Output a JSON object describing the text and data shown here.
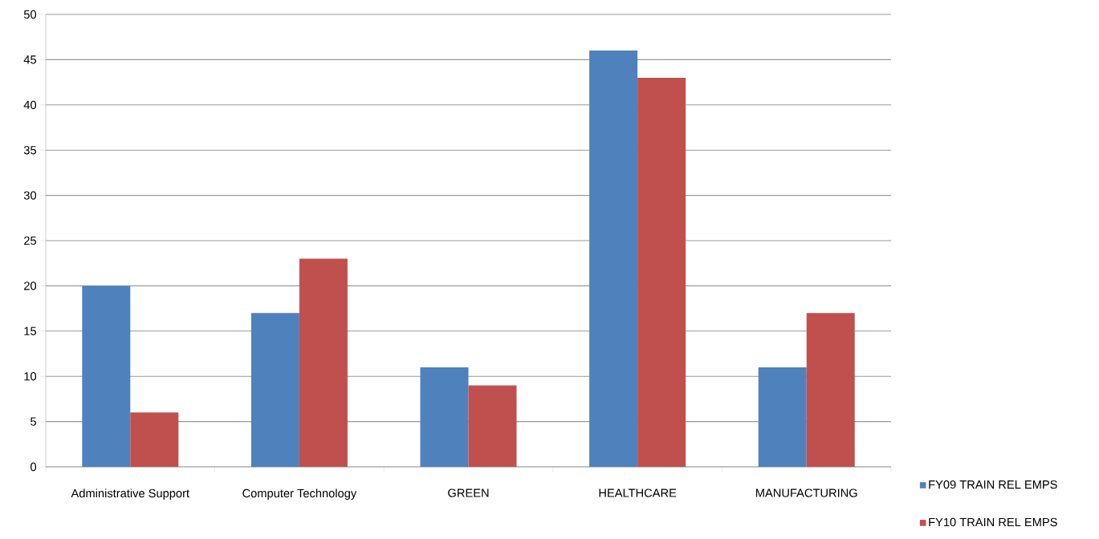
{
  "chart_data": {
    "type": "bar",
    "categories": [
      "Administrative Support",
      "Computer Technology",
      "GREEN",
      "HEALTHCARE",
      "MANUFACTURING"
    ],
    "series": [
      {
        "name": "FY09 TRAIN REL EMPS",
        "color": "#4f81bd",
        "values": [
          20,
          17,
          11,
          46,
          11
        ]
      },
      {
        "name": "FY10 TRAIN REL EMPS",
        "color": "#c0504d",
        "values": [
          6,
          23,
          9,
          43,
          17
        ]
      }
    ],
    "ylim": [
      0,
      50
    ],
    "yticks": [
      0,
      5,
      10,
      15,
      20,
      25,
      30,
      35,
      40,
      45,
      50
    ],
    "grid": "y",
    "legend": "bottom right"
  }
}
